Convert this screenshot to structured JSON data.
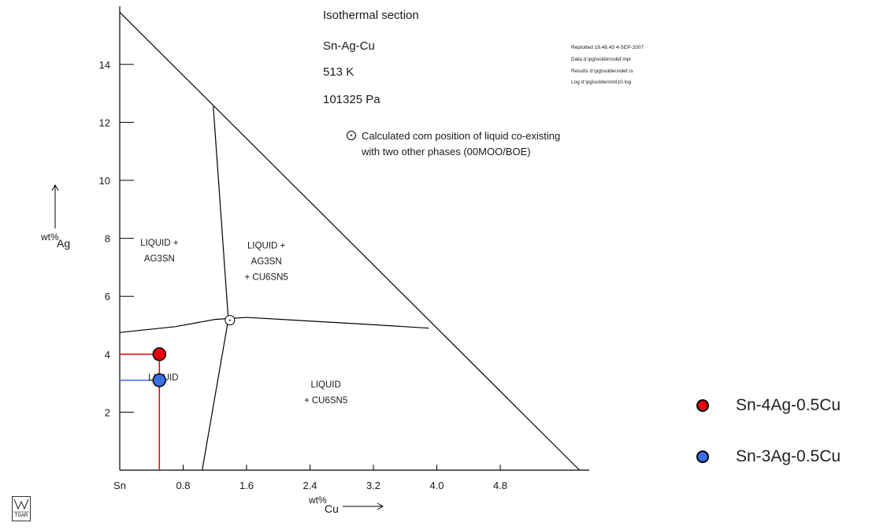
{
  "chart_data": {
    "type": "ternary-section",
    "title_lines": [
      "Isothermal section",
      "Sn-Ag-Cu",
      "513 K",
      "101325 Pa"
    ],
    "info_lines": [
      "Replotted 19.46.43 4-SEP-2007",
      "Data d:\\pg\\solders\\def.mpi",
      "Results d:\\pg\\solders\\def.rs",
      "Log d:\\pg\\solders\\ml10.log"
    ],
    "annotation_lines": [
      "Calculated com position of liquid co-existing",
      "with two other phases (00MOO/BOE)"
    ],
    "x_axis": {
      "label": "wt%",
      "subscript": "Cu",
      "tick_labels": [
        "Sn",
        "0.8",
        "1.6",
        "2.4",
        "3.2",
        "4.0",
        "4.8"
      ],
      "tick_values": [
        0,
        0.8,
        1.6,
        2.4,
        3.2,
        4.0,
        4.8
      ],
      "range": [
        0,
        5.8
      ]
    },
    "y_axis": {
      "label": "wt%",
      "subscript": "Ag",
      "tick_labels": [
        "2",
        "4",
        "6",
        "8",
        "10",
        "12",
        "14"
      ],
      "tick_values": [
        2,
        4,
        6,
        8,
        10,
        12,
        14
      ],
      "range": [
        0,
        15.8
      ]
    },
    "triangle_edge": [
      [
        0,
        15.8
      ],
      [
        5.8,
        0
      ]
    ],
    "phase_boundaries": [
      {
        "id": "left-vertical",
        "points": [
          [
            1.04,
            0
          ],
          [
            1.37,
            5.2
          ],
          [
            1.18,
            12.55
          ]
        ]
      },
      {
        "id": "horizontal",
        "points": [
          [
            0,
            4.75
          ],
          [
            0.7,
            4.95
          ],
          [
            1.2,
            5.2
          ],
          [
            1.6,
            5.27
          ],
          [
            3.0,
            5.05
          ],
          [
            3.9,
            4.9
          ]
        ]
      }
    ],
    "invariant_point": {
      "x": 1.37,
      "y": 5.2
    },
    "regions": [
      {
        "lines": [
          "LIQUID +",
          "AG3SN"
        ],
        "x": 0.5,
        "y": 7.75
      },
      {
        "lines": [
          "LIQUID +",
          "AG3SN",
          "+ CU6SN5"
        ],
        "x": 1.85,
        "y": 7.65
      },
      {
        "lines": [
          "LIQUID"
        ],
        "x": 0.55,
        "y": 3.1
      },
      {
        "lines": [
          "LIQUID",
          "+ CU6SN5"
        ],
        "x": 2.6,
        "y": 2.85
      }
    ],
    "series": [
      {
        "name": "Sn-4Ag-0.5Cu",
        "x": 0.5,
        "y": 4.0,
        "color": "#e8000b"
      },
      {
        "name": "Sn-3Ag-0.5Cu",
        "x": 0.5,
        "y": 3.1,
        "color": "#3a6fe8"
      }
    ],
    "guide_line_colors": {
      "red": "#e8000b",
      "blue": "#3a6fe8"
    }
  },
  "legend": [
    {
      "label": "Sn-4Ag-0.5Cu",
      "color": "#e8000b"
    },
    {
      "label": "Sn-3Ag-0.5Cu",
      "color": "#3a6fe8"
    }
  ],
  "logo": {
    "text": "TGAR"
  }
}
